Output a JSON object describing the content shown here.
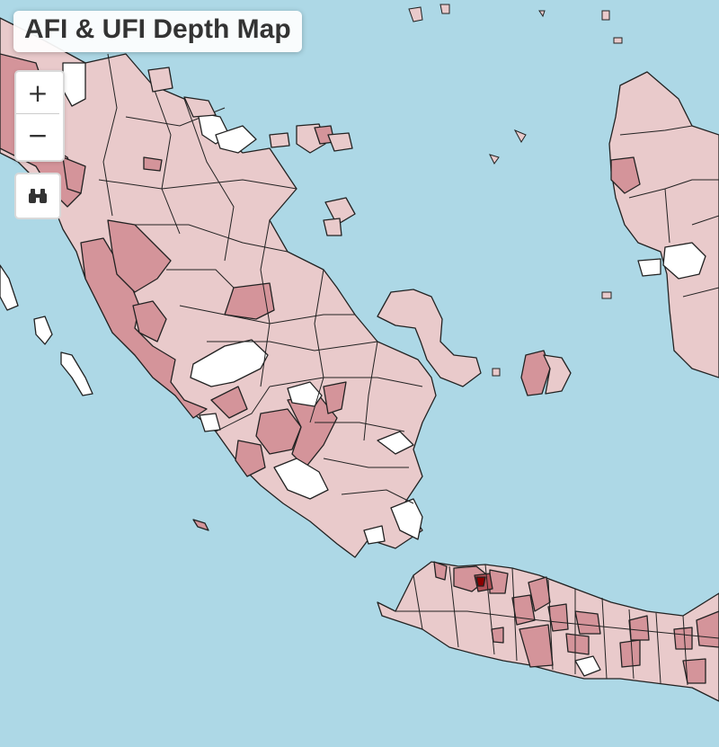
{
  "map": {
    "title": "AFI & UFI Depth Map",
    "colors": {
      "water": "#add8e6",
      "none": "#ffffff",
      "low": "#e9cacb",
      "mid": "#d4949a",
      "high": "#b05258",
      "max": "#8b0000"
    }
  },
  "controls": {
    "zoom_in": "+",
    "zoom_out": "−",
    "locate_icon": "binoculars-icon"
  }
}
